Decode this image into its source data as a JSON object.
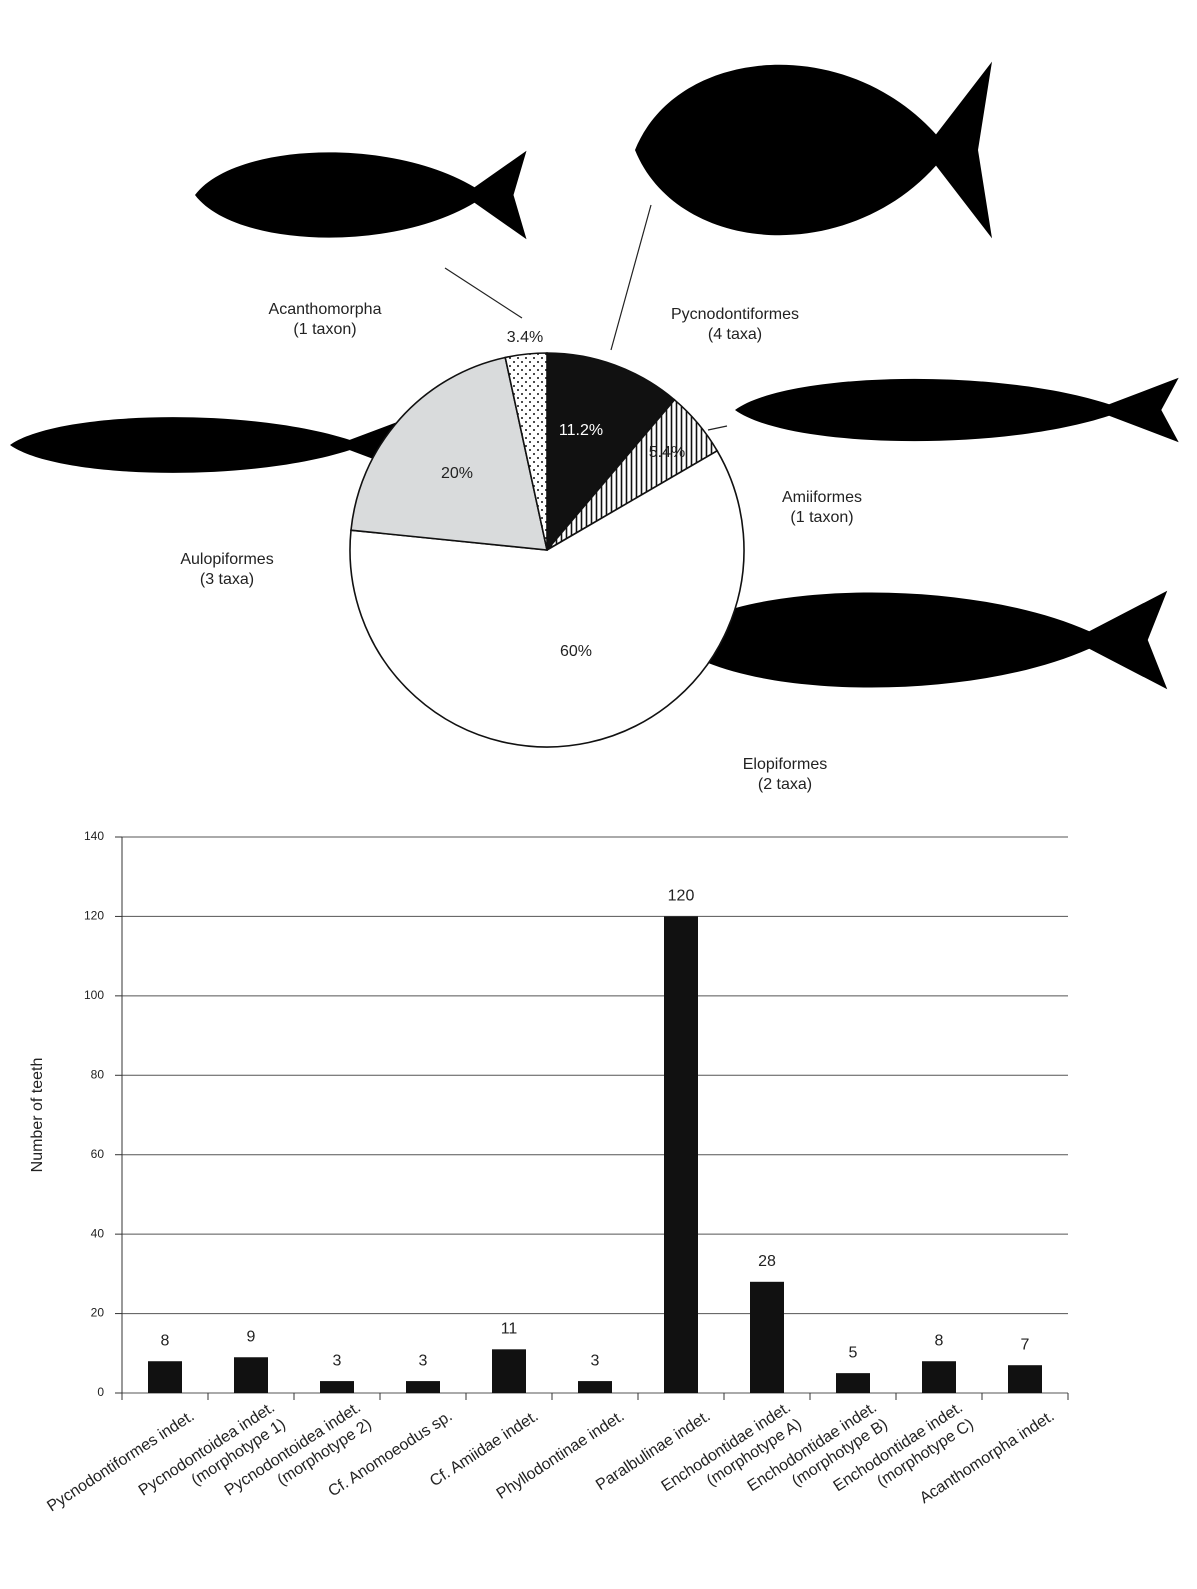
{
  "chart_data": [
    {
      "type": "pie",
      "categories": [
        "Pycnodontiformes\n(4 taxa)",
        "Amiiformes\n(1 taxon)",
        "Elopiformes\n(2 taxa)",
        "Aulopiformes\n(3 taxa)",
        "Acanthomorpha\n(1 taxon)"
      ],
      "values": [
        11.2,
        5.4,
        60,
        20,
        3.4
      ],
      "value_labels": [
        "11.2%",
        "5.4%",
        "60%",
        "20%",
        "3.4%"
      ],
      "colors": [
        "#111111",
        "#ffffff",
        "#ffffff",
        "#d9dbdc",
        "#ffffff"
      ],
      "patterns": [
        "solid",
        "vertical-lines",
        "solid",
        "solid",
        "dots"
      ]
    },
    {
      "type": "bar",
      "y_label": "Number of teeth",
      "categories": [
        "Pycnodontiformes indet.",
        "Pycnodontoidea indet.\n(morphotype 1)",
        "Pycnodontoidea indet.\n(morphotype 2)",
        "Cf. Anomoeodus sp.",
        "Cf. Amiidae indet.",
        "Phyllodontinae indet.",
        "Paralbulinae indet.",
        "Enchodontidae indet.\n(morphotype A)",
        "Enchodontidae indet.\n(morphotype B)",
        "Enchodontidae indet.\n(morphotype C)",
        "Acanthomorpha indet."
      ],
      "values": [
        8,
        9,
        3,
        3,
        11,
        3,
        120,
        28,
        5,
        8,
        7
      ],
      "color": "#111111",
      "ylim": [
        0,
        140
      ],
      "yticks": [
        0,
        20,
        40,
        60,
        80,
        100,
        120,
        140
      ],
      "grid": true
    }
  ]
}
